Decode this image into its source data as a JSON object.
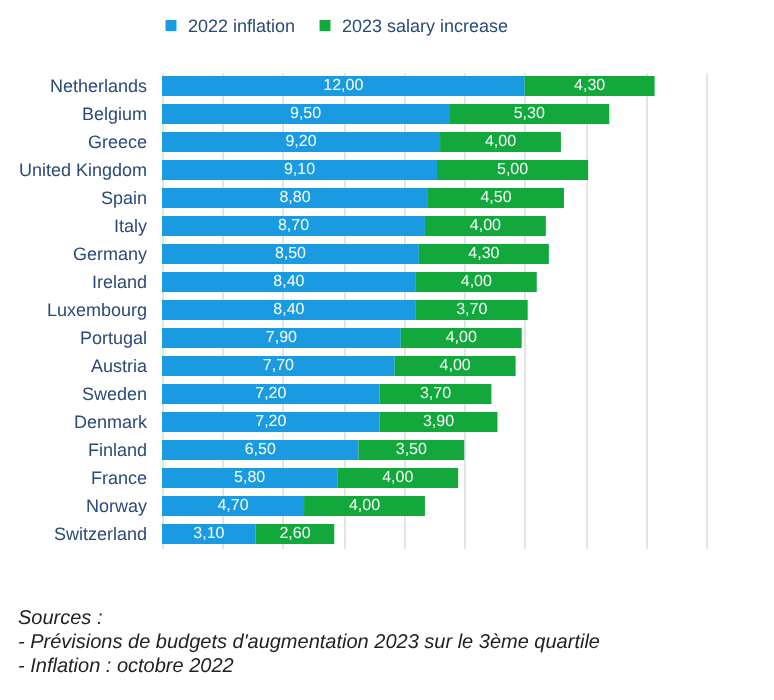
{
  "chart_data": {
    "type": "bar",
    "orientation": "horizontal",
    "stacked": true,
    "categories": [
      "Netherlands",
      "Belgium",
      "Greece",
      "United Kingdom",
      "Spain",
      "Italy",
      "Germany",
      "Ireland",
      "Luxembourg",
      "Portugal",
      "Austria",
      "Sweden",
      "Denmark",
      "Finland",
      "France",
      "Norway",
      "Switzerland"
    ],
    "series": [
      {
        "name": "2022 inflation",
        "color": "#1a9ae0",
        "values": [
          12.0,
          9.5,
          9.2,
          9.1,
          8.8,
          8.7,
          8.5,
          8.4,
          8.4,
          7.9,
          7.7,
          7.2,
          7.2,
          6.5,
          5.8,
          4.7,
          3.1
        ],
        "value_labels": [
          "12,00",
          "9,50",
          "9,20",
          "9,10",
          "8,80",
          "8,70",
          "8,50",
          "8,40",
          "8,40",
          "7,90",
          "7,70",
          "7,20",
          "7,20",
          "6,50",
          "5,80",
          "4,70",
          "3,10"
        ]
      },
      {
        "name": "2023 salary increase",
        "color": "#12a83c",
        "values": [
          4.3,
          5.3,
          4.0,
          5.0,
          4.5,
          4.0,
          4.3,
          4.0,
          3.7,
          4.0,
          4.0,
          3.7,
          3.9,
          3.5,
          4.0,
          4.0,
          2.6
        ],
        "value_labels": [
          "4,30",
          "5,30",
          "4,00",
          "5,00",
          "4,50",
          "4,00",
          "4,30",
          "4,00",
          "3,70",
          "4,00",
          "4,00",
          "3,70",
          "3,90",
          "3,50",
          "4,00",
          "4,00",
          "2,60"
        ]
      }
    ],
    "grid": "x",
    "tick_labels": "y",
    "legend": "top",
    "annotations": [
      "Sources :",
      "- Prévisions de budgets d'augmentation 2023 sur le 3ème quartile",
      "- Inflation : octobre 2022"
    ]
  }
}
